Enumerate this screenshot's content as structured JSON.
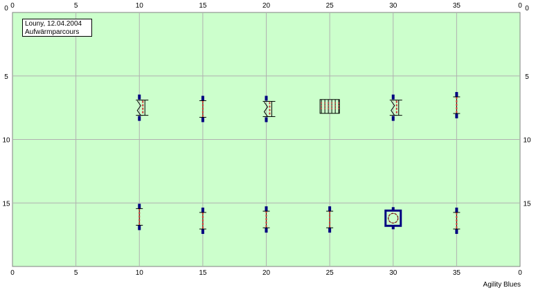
{
  "info": {
    "location_date": "Louny, 12.04.2004",
    "course_name": "Aufwärmparcours"
  },
  "brand": "Agility Blues",
  "field": {
    "x_max": 40,
    "y_max": 20,
    "x_ticks": [
      "0",
      "5",
      "10",
      "15",
      "20",
      "25",
      "30",
      "35",
      "0"
    ],
    "y_ticks": [
      "0",
      "5",
      "10",
      "15"
    ],
    "field_color": "#ccffcc",
    "grid_color": "#b0b0b0"
  },
  "obstacles": [
    {
      "type": "hurdle-wing",
      "icon": "wing-hurdle-icon",
      "x": 10,
      "y": 7.5
    },
    {
      "type": "hurdle",
      "icon": "hurdle-icon",
      "x": 15,
      "y": 7.6
    },
    {
      "type": "hurdle-wing",
      "icon": "wing-hurdle-icon",
      "x": 20,
      "y": 7.6
    },
    {
      "type": "weave-poles",
      "icon": "weave-poles-icon",
      "x": 25,
      "y": 7.4
    },
    {
      "type": "hurdle-wing",
      "icon": "wing-hurdle-icon",
      "x": 30,
      "y": 7.5
    },
    {
      "type": "hurdle",
      "icon": "hurdle-icon",
      "x": 35,
      "y": 7.3
    },
    {
      "type": "hurdle",
      "icon": "hurdle-icon",
      "x": 10,
      "y": 16.1
    },
    {
      "type": "hurdle",
      "icon": "hurdle-icon",
      "x": 15,
      "y": 16.4
    },
    {
      "type": "hurdle",
      "icon": "hurdle-icon",
      "x": 20,
      "y": 16.3
    },
    {
      "type": "hurdle",
      "icon": "hurdle-icon",
      "x": 25,
      "y": 16.3
    },
    {
      "type": "tire",
      "icon": "tire-jump-icon",
      "x": 30,
      "y": 16.2
    },
    {
      "type": "hurdle",
      "icon": "hurdle-icon",
      "x": 35,
      "y": 16.4
    }
  ],
  "colors": {
    "pole": "#000080",
    "bar": "#cc3333",
    "tire_fill": "#ccffcc"
  }
}
